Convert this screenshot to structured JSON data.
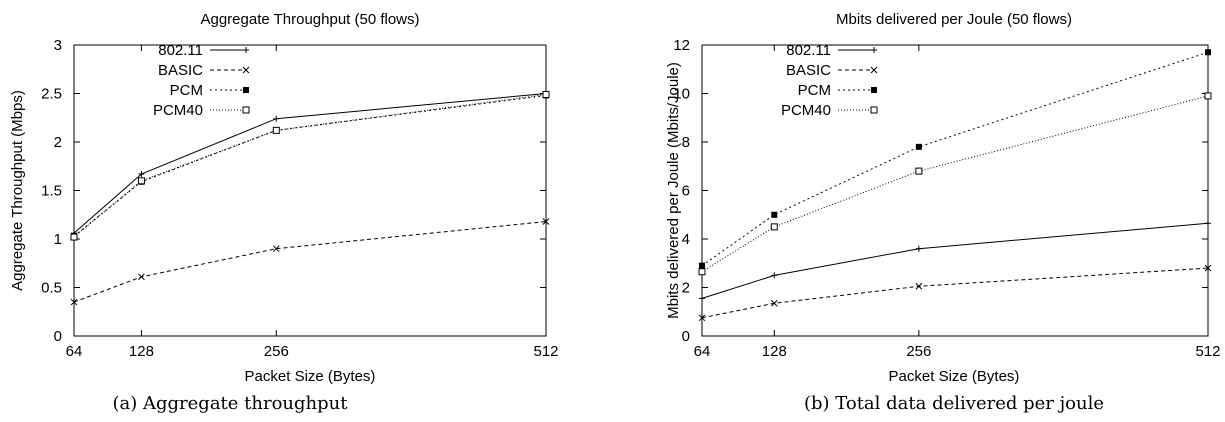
{
  "chart_data": [
    {
      "type": "line",
      "title": "Aggregate Throughput (50 flows)",
      "xlabel": "Packet Size (Bytes)",
      "ylabel": "Aggregate Throughput (Mbps)",
      "caption": "(a) Aggregate throughput",
      "x": [
        64,
        128,
        256,
        512
      ],
      "xticks": [
        64,
        128,
        256,
        512
      ],
      "xtick_labels": [
        "64",
        "128",
        "256",
        "512"
      ],
      "yticks": [
        0,
        0.5,
        1,
        1.5,
        2,
        2.5,
        3
      ],
      "ytick_labels": [
        "0",
        "0.5",
        "1",
        "1.5",
        "2",
        "2.5",
        "3"
      ],
      "xlim": [
        64,
        512
      ],
      "ylim": [
        0,
        3
      ],
      "grid": false,
      "legend_position": "top-left",
      "series": [
        {
          "name": "802.11",
          "values": [
            1.06,
            1.67,
            2.24,
            2.5
          ],
          "marker": "plus",
          "dash": "solid"
        },
        {
          "name": "BASIC",
          "values": [
            0.35,
            0.61,
            0.9,
            1.18
          ],
          "marker": "cross",
          "dash": "dashed"
        },
        {
          "name": "PCM",
          "values": [
            1.03,
            1.59,
            2.12,
            2.48
          ],
          "marker": "filled-square",
          "dash": "dotted"
        },
        {
          "name": "PCM40",
          "values": [
            1.02,
            1.6,
            2.12,
            2.49
          ],
          "marker": "open-square",
          "dash": "fine-dotted"
        }
      ]
    },
    {
      "type": "line",
      "title": "Mbits delivered per Joule (50 flows)",
      "xlabel": "Packet Size (Bytes)",
      "ylabel": "Mbits delivered per Joule (Mbits/Joule)",
      "caption": "(b) Total data delivered per joule",
      "x": [
        64,
        128,
        256,
        512
      ],
      "xticks": [
        64,
        128,
        256,
        512
      ],
      "xtick_labels": [
        "64",
        "128",
        "256",
        "512"
      ],
      "yticks": [
        0,
        2,
        4,
        6,
        8,
        10,
        12
      ],
      "ytick_labels": [
        "0",
        "2",
        "4",
        "6",
        "8",
        "10",
        "12"
      ],
      "xlim": [
        64,
        512
      ],
      "ylim": [
        0,
        12
      ],
      "grid": false,
      "legend_position": "top-left",
      "series": [
        {
          "name": "802.11",
          "values": [
            1.55,
            2.5,
            3.6,
            4.65
          ],
          "marker": "plus",
          "dash": "solid"
        },
        {
          "name": "BASIC",
          "values": [
            0.75,
            1.35,
            2.05,
            2.8
          ],
          "marker": "cross",
          "dash": "dashed"
        },
        {
          "name": "PCM",
          "values": [
            2.9,
            5.0,
            7.8,
            11.7
          ],
          "marker": "filled-square",
          "dash": "dotted"
        },
        {
          "name": "PCM40",
          "values": [
            2.65,
            4.5,
            6.8,
            9.9
          ],
          "marker": "open-square",
          "dash": "fine-dotted"
        }
      ]
    }
  ]
}
